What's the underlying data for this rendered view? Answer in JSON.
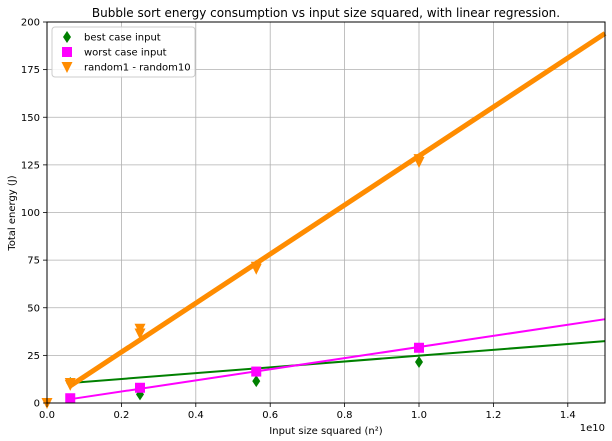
{
  "chart_data": {
    "type": "scatter",
    "title": "Bubble sort energy consumption vs input size squared, with linear regression.",
    "xlabel": "Input size squared (n²)",
    "ylabel": "Total energy (J)",
    "x_offset_text": "1e10",
    "xlim": [
      0,
      1.5
    ],
    "ylim": [
      0,
      200
    ],
    "x_ticks": [
      "0.0",
      "0.2",
      "0.4",
      "0.6",
      "0.8",
      "1.0",
      "1.2",
      "1.4"
    ],
    "y_ticks": [
      "0",
      "25",
      "50",
      "75",
      "100",
      "125",
      "150",
      "175",
      "200"
    ],
    "grid": true,
    "legend_position": "top-left",
    "series": [
      {
        "name": "best case input",
        "color": "#008000",
        "marker": "diamond",
        "points": [
          [
            0.0625,
            10.5
          ],
          [
            0.25,
            4.5
          ],
          [
            0.5625,
            11.5
          ],
          [
            1.0,
            21.5
          ]
        ],
        "regression": [
          [
            0.0625,
            10.5
          ],
          [
            1.5,
            32.5
          ]
        ]
      },
      {
        "name": "worst case input",
        "color": "#ff00ff",
        "marker": "square",
        "points": [
          [
            0.0625,
            2.5
          ],
          [
            0.25,
            8.0
          ],
          [
            0.5625,
            16.5
          ],
          [
            1.0,
            29.0
          ]
        ],
        "regression": [
          [
            0.0625,
            2.0
          ],
          [
            1.5,
            44.0
          ]
        ]
      },
      {
        "name": "random1 - random10",
        "color": "#ff8c00",
        "marker": "triangle-down",
        "points": [
          [
            0.0,
            0.0
          ],
          [
            0.0625,
            9.5
          ],
          [
            0.0625,
            10.5
          ],
          [
            0.25,
            36.5
          ],
          [
            0.25,
            39.0
          ],
          [
            0.5625,
            70.5
          ],
          [
            0.5625,
            71.5
          ],
          [
            1.0,
            126.5
          ],
          [
            1.0,
            128.0
          ]
        ],
        "regression": [
          [
            0.0625,
            9.0
          ],
          [
            1.5,
            194.0
          ]
        ]
      }
    ]
  }
}
